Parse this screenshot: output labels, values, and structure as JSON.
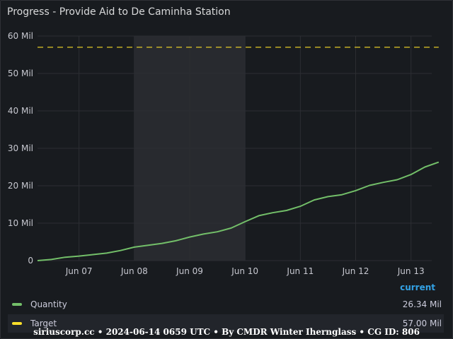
{
  "panel": {
    "title": "Progress - Provide Aid to De Caminha Station"
  },
  "legend": {
    "column_header": "current",
    "rows": [
      {
        "name": "Quantity",
        "value": "26.34 Mil",
        "color": "#73bf69"
      },
      {
        "name": "Target",
        "value": "57.00 Mil",
        "color": "#fade2a"
      }
    ]
  },
  "footer": {
    "text": "siriuscorp.cc • 2024-06-14 0659 UTC • By CMDR Winter Iherngla ss • CG ID: 806"
  },
  "chart_data": {
    "type": "line",
    "y_tick_labels": [
      "0",
      "10 Mil",
      "20 Mil",
      "30 Mil",
      "40 Mil",
      "50 Mil",
      "60 Mil"
    ],
    "y_ticks": [
      0,
      10,
      20,
      30,
      40,
      50,
      60
    ],
    "ylim": [
      0,
      60
    ],
    "x_tick_labels": [
      "Jun 07",
      "Jun 08",
      "Jun 09",
      "Jun 10",
      "Jun 11",
      "Jun 12",
      "Jun 13"
    ],
    "x_ticks": [
      "2024-06-07",
      "2024-06-08",
      "2024-06-09",
      "2024-06-10",
      "2024-06-11",
      "2024-06-12",
      "2024-06-13"
    ],
    "xlim": [
      "2024-06-06T06:00",
      "2024-06-13T09:00"
    ],
    "highlight_range": [
      "2024-06-08",
      "2024-06-10"
    ],
    "grid": true,
    "legend_position": "bottom",
    "series": [
      {
        "name": "Quantity",
        "color": "#73bf69",
        "style": "solid",
        "points": [
          [
            "2024-06-06T06:00",
            0.0
          ],
          [
            "2024-06-06T12:00",
            0.3
          ],
          [
            "2024-06-06T18:00",
            0.9
          ],
          [
            "2024-06-07T00:00",
            1.2
          ],
          [
            "2024-06-07T06:00",
            1.6
          ],
          [
            "2024-06-07T12:00",
            2.0
          ],
          [
            "2024-06-07T18:00",
            2.7
          ],
          [
            "2024-06-08T00:00",
            3.6
          ],
          [
            "2024-06-08T06:00",
            4.1
          ],
          [
            "2024-06-08T12:00",
            4.6
          ],
          [
            "2024-06-08T18:00",
            5.3
          ],
          [
            "2024-06-09T00:00",
            6.3
          ],
          [
            "2024-06-09T06:00",
            7.1
          ],
          [
            "2024-06-09T12:00",
            7.7
          ],
          [
            "2024-06-09T18:00",
            8.7
          ],
          [
            "2024-06-10T00:00",
            10.4
          ],
          [
            "2024-06-10T06:00",
            12.0
          ],
          [
            "2024-06-10T12:00",
            12.8
          ],
          [
            "2024-06-10T18:00",
            13.4
          ],
          [
            "2024-06-11T00:00",
            14.5
          ],
          [
            "2024-06-11T06:00",
            16.2
          ],
          [
            "2024-06-11T12:00",
            17.1
          ],
          [
            "2024-06-11T18:00",
            17.6
          ],
          [
            "2024-06-12T00:00",
            18.7
          ],
          [
            "2024-06-12T06:00",
            20.1
          ],
          [
            "2024-06-12T12:00",
            20.9
          ],
          [
            "2024-06-12T18:00",
            21.6
          ],
          [
            "2024-06-13T00:00",
            23.0
          ],
          [
            "2024-06-13T06:00",
            25.0
          ],
          [
            "2024-06-13T12:00",
            26.3
          ]
        ]
      },
      {
        "name": "Target",
        "color": "#fade2a",
        "style": "dashed",
        "points": [
          [
            "2024-06-06T06:00",
            57.0
          ],
          [
            "2024-06-13T12:00",
            57.0
          ]
        ]
      }
    ]
  }
}
